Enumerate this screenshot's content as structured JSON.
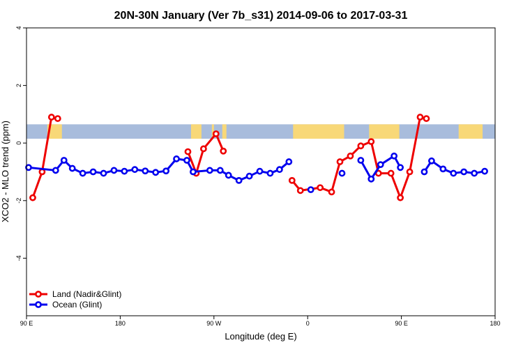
{
  "chart_data": {
    "type": "line",
    "title": "20N-30N January (Ver 7b_s31)   2014-09-06 to 2017-03-31",
    "xlabel": "Longitude (deg E)",
    "ylabel": "XCO2 - MLO trend (ppm)",
    "xlim": [
      90,
      540
    ],
    "ylim": [
      -6,
      4
    ],
    "y_ticks": [
      {
        "value": 4,
        "label": "4"
      },
      {
        "value": 2,
        "label": "2"
      },
      {
        "value": 0,
        "label": "0"
      },
      {
        "value": -2,
        "label": "-2"
      },
      {
        "value": -4,
        "label": "-4"
      }
    ],
    "x_ticks": [
      {
        "value": 90,
        "label": "90 E"
      },
      {
        "value": 180,
        "label": "180"
      },
      {
        "value": 270,
        "label": "90 W"
      },
      {
        "value": 360,
        "label": "0"
      },
      {
        "value": 450,
        "label": "90 E"
      },
      {
        "value": 540,
        "label": "180"
      }
    ],
    "grid": false,
    "legend_position": "bottom-left",
    "map_band": {
      "y_range": [
        0.15,
        0.65
      ],
      "ocean_color": "#a8bcdc",
      "land_color": "#f8d878",
      "land_segments": [
        [
          110,
          124
        ],
        [
          248,
          258
        ],
        [
          268,
          270
        ],
        [
          278,
          282
        ],
        [
          346,
          395
        ],
        [
          419,
          448
        ],
        [
          505,
          528
        ]
      ]
    },
    "series": [
      {
        "name": "Land (Nadir&Glint)",
        "color": "#ee0000",
        "segments": [
          [
            [
              96,
              -1.9
            ],
            [
              105,
              -1.0
            ],
            [
              114,
              0.9
            ],
            [
              120,
              0.85
            ]
          ],
          [
            [
              245,
              -0.3
            ],
            [
              253,
              -1.05
            ],
            [
              260,
              -0.2
            ],
            [
              272,
              0.32
            ],
            [
              279,
              -0.28
            ]
          ],
          [
            [
              345,
              -1.3
            ],
            [
              353,
              -1.65
            ],
            [
              372,
              -1.55
            ],
            [
              383,
              -1.7
            ],
            [
              391,
              -0.65
            ],
            [
              401,
              -0.45
            ],
            [
              411,
              -0.1
            ],
            [
              421,
              0.05
            ],
            [
              428,
              -1.05
            ],
            [
              440,
              -1.05
            ],
            [
              449,
              -1.9
            ],
            [
              458,
              -1.0
            ],
            [
              468,
              0.9
            ],
            [
              474,
              0.85
            ]
          ]
        ]
      },
      {
        "name": "Ocean (Glint)",
        "color": "#0000ee",
        "segments": [
          [
            [
              92,
              -0.85
            ],
            [
              118,
              -0.95
            ],
            [
              126,
              -0.6
            ],
            [
              134,
              -0.88
            ],
            [
              144,
              -1.05
            ],
            [
              154,
              -1.0
            ],
            [
              164,
              -1.05
            ],
            [
              174,
              -0.95
            ],
            [
              184,
              -0.98
            ],
            [
              194,
              -0.92
            ],
            [
              204,
              -0.97
            ],
            [
              214,
              -1.02
            ],
            [
              224,
              -0.97
            ],
            [
              234,
              -0.55
            ],
            [
              244,
              -0.6
            ],
            [
              250,
              -1.0
            ],
            [
              266,
              -0.95
            ],
            [
              276,
              -0.95
            ],
            [
              284,
              -1.12
            ],
            [
              294,
              -1.3
            ],
            [
              304,
              -1.15
            ],
            [
              314,
              -0.98
            ],
            [
              324,
              -1.05
            ],
            [
              333,
              -0.92
            ],
            [
              342,
              -0.65
            ]
          ],
          [
            [
              363,
              -1.62
            ]
          ],
          [
            [
              393,
              -1.05
            ]
          ],
          [
            [
              411,
              -0.6
            ],
            [
              421,
              -1.25
            ],
            [
              430,
              -0.75
            ],
            [
              443,
              -0.45
            ],
            [
              449,
              -0.85
            ]
          ],
          [
            [
              472,
              -1.0
            ],
            [
              479,
              -0.62
            ],
            [
              490,
              -0.9
            ],
            [
              500,
              -1.05
            ],
            [
              510,
              -1.0
            ],
            [
              520,
              -1.05
            ],
            [
              530,
              -0.98
            ]
          ]
        ]
      }
    ]
  }
}
